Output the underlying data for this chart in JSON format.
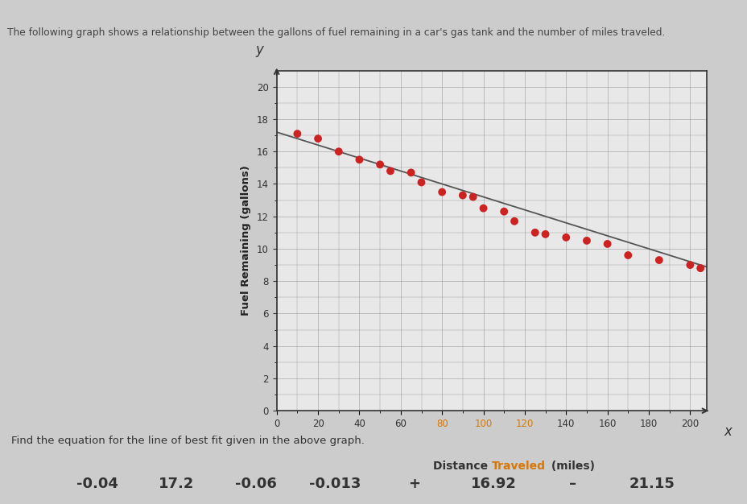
{
  "title": "The following graph shows a relationship between the gallons of fuel remaining in a car's gas tank and the number of miles traveled.",
  "xlabel_normal": "Distance ",
  "xlabel_orange": "Traveled",
  "xlabel_end": " (miles)",
  "ylabel": "Fuel Remaining (gallons)",
  "xlabel_color_normal": "#333333",
  "xlabel_color_orange": "#d4780a",
  "scatter_color": "#cc2222",
  "line_color": "#555555",
  "xlim": [
    0,
    208
  ],
  "ylim": [
    0,
    21
  ],
  "xticks": [
    0,
    20,
    40,
    60,
    80,
    100,
    120,
    140,
    160,
    180,
    200
  ],
  "yticks": [
    0,
    2,
    4,
    6,
    8,
    10,
    12,
    14,
    16,
    18,
    20
  ],
  "orange_xticks": [
    80,
    100,
    120
  ],
  "data_x": [
    10,
    20,
    30,
    40,
    50,
    55,
    65,
    70,
    80,
    90,
    95,
    100,
    110,
    115,
    125,
    130,
    140,
    150,
    160,
    170,
    185,
    200,
    205
  ],
  "data_y": [
    17.1,
    16.8,
    16.0,
    15.5,
    15.2,
    14.8,
    14.7,
    14.1,
    13.5,
    13.3,
    13.2,
    12.5,
    12.3,
    11.7,
    11.0,
    10.9,
    10.7,
    10.5,
    10.3,
    9.6,
    9.3,
    9.0,
    8.8
  ],
  "slope": -0.04,
  "intercept": 17.2,
  "bottom_text": "Find the equation for the line of best fit given in the above graph.",
  "answers": [
    "-0.04",
    "17.2",
    "-0.06",
    "-0.013",
    "+",
    "16.92",
    "–",
    "21.15"
  ],
  "grid_color": "#999999",
  "figure_bg": "#cccccc",
  "axis_bg": "#e8e8e8",
  "header_bg": "#b0cce0",
  "header_text_color": "#444444"
}
